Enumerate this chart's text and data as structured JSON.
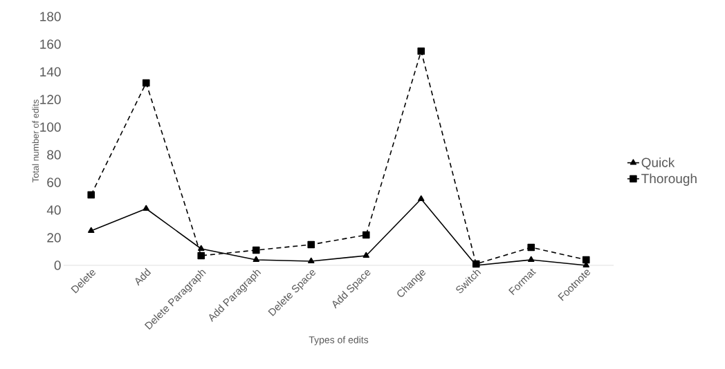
{
  "chart_data": {
    "type": "line",
    "xlabel": "Types of edits",
    "ylabel": "Total number of edits",
    "categories": [
      "Delete",
      "Add",
      "Delete Paragraph",
      "Add Paragraph",
      "Delete Space",
      "Add Space",
      "Change",
      "Switch",
      "Format",
      "Footnote"
    ],
    "series": [
      {
        "name": "Quick",
        "color": "#000000",
        "marker": "triangle",
        "line_style": "solid",
        "values": [
          25,
          41,
          12,
          4,
          3,
          7,
          48,
          0,
          4,
          0
        ]
      },
      {
        "name": "Thorough",
        "color": "#000000",
        "marker": "square",
        "line_style": "dashed",
        "values": [
          51,
          132,
          7,
          11,
          15,
          22,
          155,
          1,
          13,
          4
        ]
      }
    ],
    "ylim": [
      0,
      180
    ],
    "yticks": [
      0,
      20,
      40,
      60,
      80,
      100,
      120,
      140,
      160,
      180
    ],
    "grid": false,
    "legend": "right"
  }
}
